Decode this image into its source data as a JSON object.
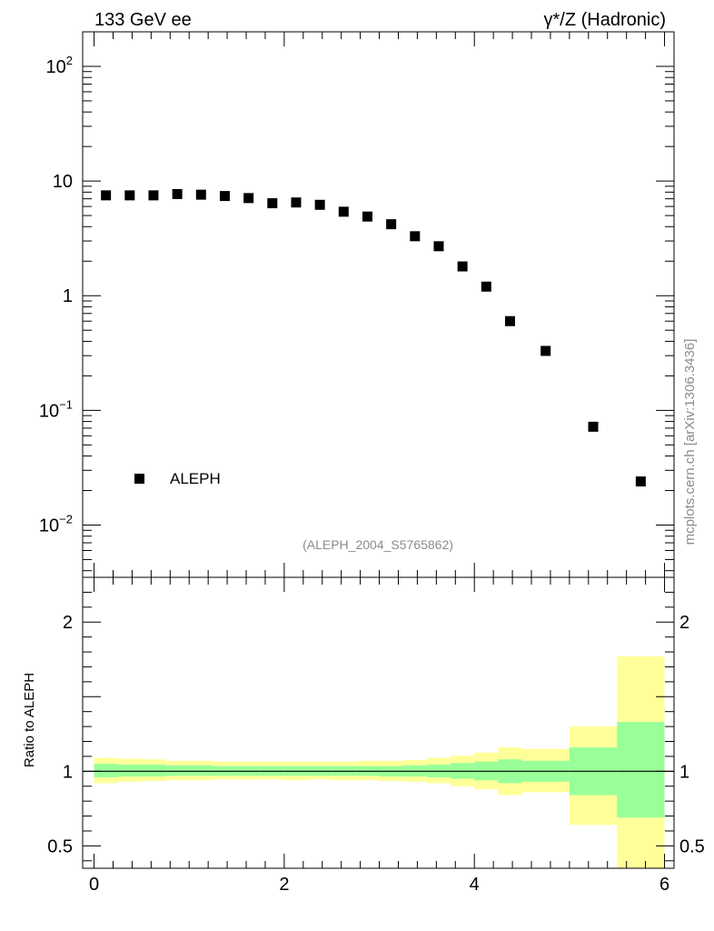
{
  "chart_data": {
    "type": "scatter",
    "title_left": "133 GeV ee",
    "title_right": "γ*/Z (Hadronic)",
    "side_label": "mcplots.cern.ch [arXiv:1306.3436]",
    "reference_label": "(ALEPH_2004_S5765862)",
    "legend": [
      {
        "name": "ALEPH",
        "marker": "square"
      }
    ],
    "upper": {
      "yscale": "log",
      "ylim": [
        0.0035,
        200
      ],
      "yticks": [
        {
          "value": 0.01,
          "base": "10",
          "exp": "−2"
        },
        {
          "value": 0.1,
          "base": "10",
          "exp": "−1"
        },
        {
          "value": 1,
          "base": "1",
          "exp": ""
        },
        {
          "value": 10,
          "base": "10",
          "exp": ""
        },
        {
          "value": 100,
          "base": "10",
          "exp": "2"
        }
      ],
      "series": [
        {
          "name": "ALEPH",
          "x": [
            0.125,
            0.375,
            0.625,
            0.875,
            1.125,
            1.375,
            1.625,
            1.875,
            2.125,
            2.375,
            2.625,
            2.875,
            3.125,
            3.375,
            3.625,
            3.875,
            4.125,
            4.375,
            4.75,
            5.25,
            5.75
          ],
          "y": [
            7.5,
            7.5,
            7.5,
            7.7,
            7.6,
            7.4,
            7.1,
            6.4,
            6.5,
            6.2,
            5.4,
            4.9,
            4.2,
            3.3,
            2.7,
            1.8,
            1.2,
            0.6,
            0.33,
            0.072,
            0.024
          ]
        }
      ]
    },
    "lower": {
      "ylabel": "Ratio to ALEPH",
      "ylim": [
        0.35,
        2.3
      ],
      "yticks": [
        0.5,
        1,
        2
      ],
      "reference_line": 1,
      "bands": [
        {
          "xlo": 0.0,
          "xhi": 0.25,
          "inner": [
            0.96,
            1.05
          ],
          "outer": [
            0.92,
            1.09
          ]
        },
        {
          "xlo": 0.25,
          "xhi": 0.5,
          "inner": [
            0.965,
            1.045
          ],
          "outer": [
            0.93,
            1.085
          ]
        },
        {
          "xlo": 0.5,
          "xhi": 0.75,
          "inner": [
            0.965,
            1.045
          ],
          "outer": [
            0.935,
            1.08
          ]
        },
        {
          "xlo": 0.75,
          "xhi": 1.0,
          "inner": [
            0.97,
            1.04
          ],
          "outer": [
            0.94,
            1.07
          ]
        },
        {
          "xlo": 1.0,
          "xhi": 1.25,
          "inner": [
            0.97,
            1.04
          ],
          "outer": [
            0.94,
            1.07
          ]
        },
        {
          "xlo": 1.25,
          "xhi": 1.5,
          "inner": [
            0.97,
            1.035
          ],
          "outer": [
            0.945,
            1.065
          ]
        },
        {
          "xlo": 1.5,
          "xhi": 1.75,
          "inner": [
            0.97,
            1.035
          ],
          "outer": [
            0.945,
            1.065
          ]
        },
        {
          "xlo": 1.75,
          "xhi": 2.0,
          "inner": [
            0.97,
            1.035
          ],
          "outer": [
            0.945,
            1.065
          ]
        },
        {
          "xlo": 2.0,
          "xhi": 2.25,
          "inner": [
            0.97,
            1.035
          ],
          "outer": [
            0.94,
            1.065
          ]
        },
        {
          "xlo": 2.25,
          "xhi": 2.5,
          "inner": [
            0.97,
            1.035
          ],
          "outer": [
            0.945,
            1.065
          ]
        },
        {
          "xlo": 2.5,
          "xhi": 2.75,
          "inner": [
            0.97,
            1.035
          ],
          "outer": [
            0.94,
            1.065
          ]
        },
        {
          "xlo": 2.75,
          "xhi": 3.0,
          "inner": [
            0.97,
            1.035
          ],
          "outer": [
            0.94,
            1.07
          ]
        },
        {
          "xlo": 3.0,
          "xhi": 3.25,
          "inner": [
            0.965,
            1.035
          ],
          "outer": [
            0.935,
            1.07
          ]
        },
        {
          "xlo": 3.25,
          "xhi": 3.5,
          "inner": [
            0.965,
            1.04
          ],
          "outer": [
            0.93,
            1.075
          ]
        },
        {
          "xlo": 3.5,
          "xhi": 3.75,
          "inner": [
            0.96,
            1.045
          ],
          "outer": [
            0.92,
            1.09
          ]
        },
        {
          "xlo": 3.75,
          "xhi": 4.0,
          "inner": [
            0.95,
            1.055
          ],
          "outer": [
            0.9,
            1.105
          ]
        },
        {
          "xlo": 4.0,
          "xhi": 4.25,
          "inner": [
            0.94,
            1.065
          ],
          "outer": [
            0.88,
            1.125
          ]
        },
        {
          "xlo": 4.25,
          "xhi": 4.5,
          "inner": [
            0.92,
            1.08
          ],
          "outer": [
            0.84,
            1.16
          ]
        },
        {
          "xlo": 4.5,
          "xhi": 5.0,
          "inner": [
            0.93,
            1.07
          ],
          "outer": [
            0.86,
            1.15
          ]
        },
        {
          "xlo": 5.0,
          "xhi": 5.5,
          "inner": [
            0.84,
            1.16
          ],
          "outer": [
            0.64,
            1.3
          ]
        },
        {
          "xlo": 5.5,
          "xhi": 6.0,
          "inner": [
            0.69,
            1.33
          ],
          "outer": [
            0.35,
            1.77
          ]
        }
      ]
    },
    "x_axis": {
      "xlim": [
        -0.12,
        6.1
      ],
      "ticks": [
        0,
        2,
        4,
        6
      ],
      "tick_labels": [
        "0",
        "2",
        "4",
        "6"
      ]
    },
    "colors": {
      "outer_band": "#ffff99",
      "inner_band": "#99ff99",
      "marker": "#000000",
      "side_text": "#8c8c8c"
    }
  }
}
